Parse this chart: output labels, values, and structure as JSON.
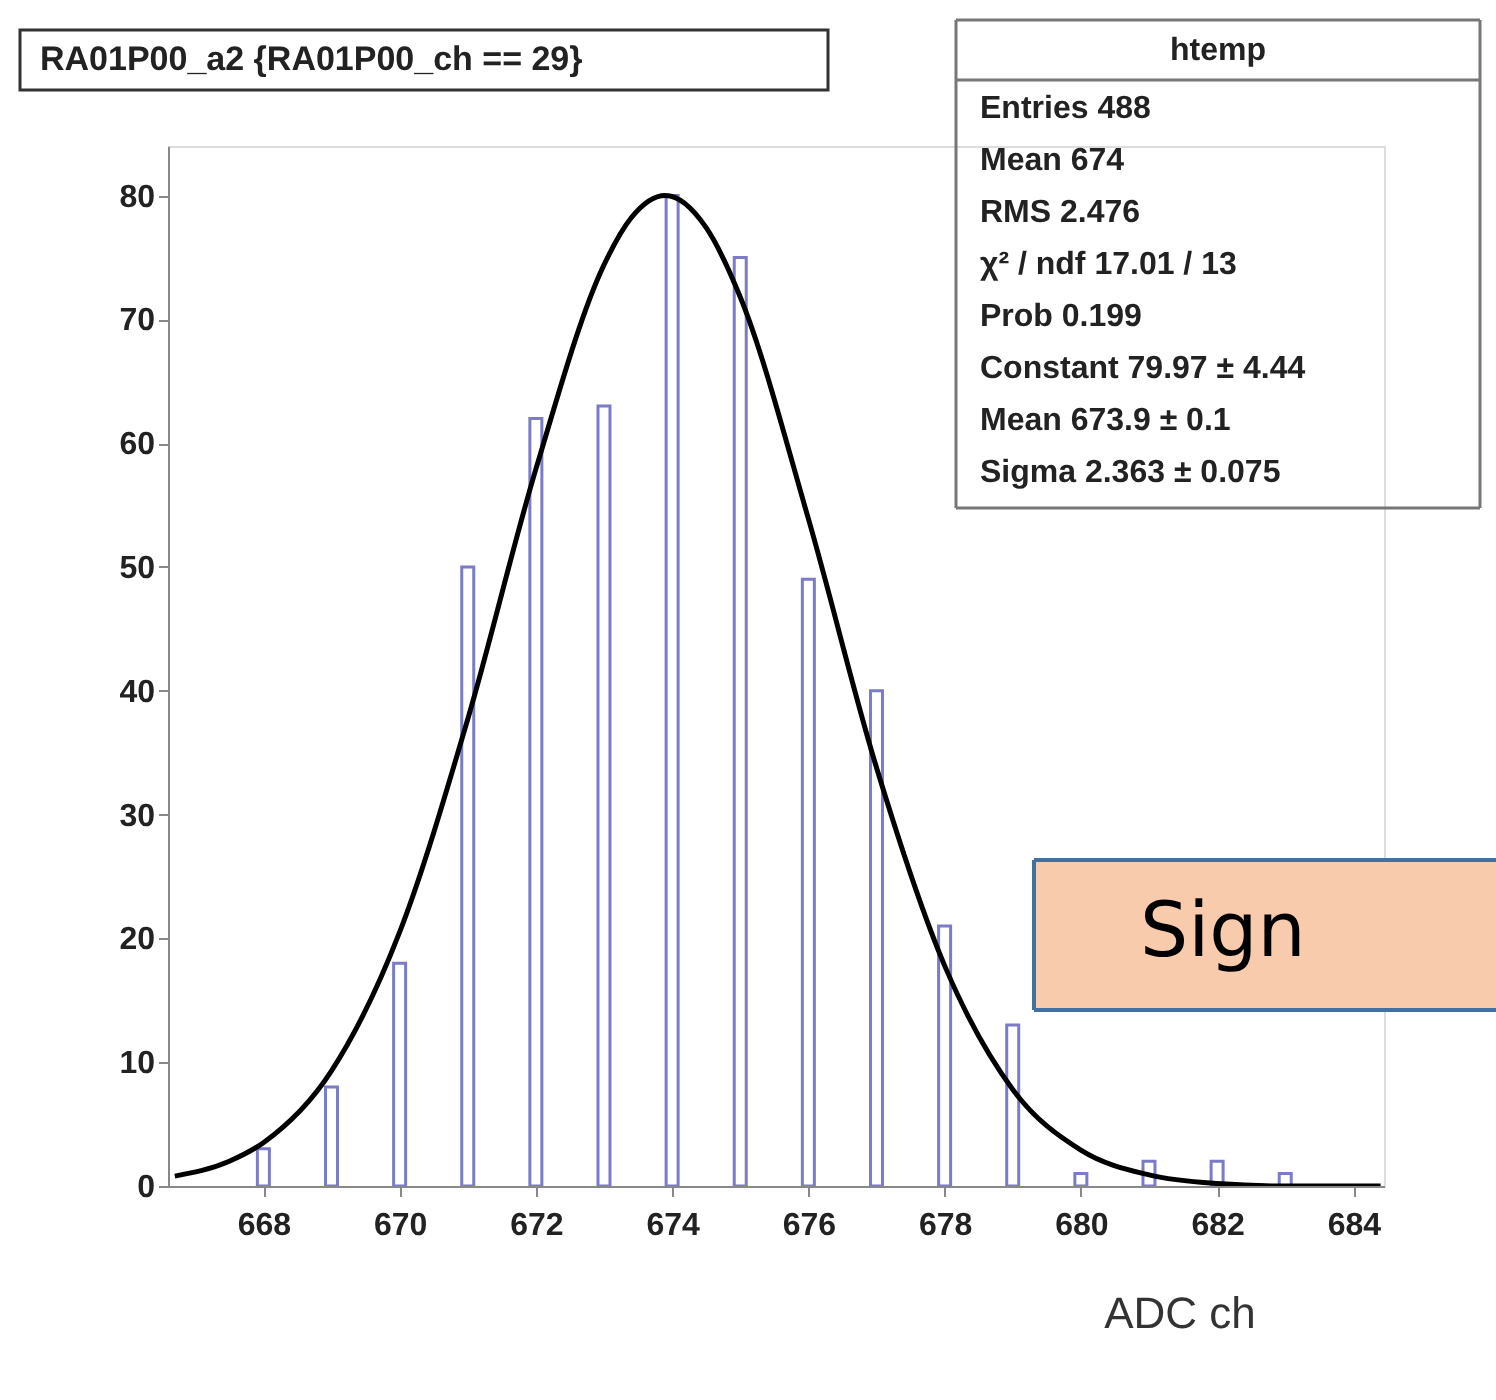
{
  "chart_data": {
    "type": "bar",
    "title": "RA01P00_a2 {RA01P00_ch == 29}",
    "xlabel": "ADC ch",
    "x": [
      668,
      669,
      670,
      671,
      672,
      673,
      674,
      675,
      676,
      677,
      678,
      679,
      680,
      681,
      682,
      683
    ],
    "series": [
      {
        "color": "#7b7bc8",
        "values": [
          3,
          8,
          18,
          50,
          62,
          63,
          80,
          75,
          49,
          40,
          21,
          13,
          1,
          2,
          2,
          1
        ]
      },
      {
        "type": "line",
        "color": "#000000",
        "x": [
          666.7,
          667.5,
          668,
          669,
          670,
          671,
          672,
          673,
          673.4,
          673.9,
          674.5,
          675,
          676,
          677,
          678,
          679,
          680,
          681,
          682,
          683,
          684,
          684.4
        ],
        "values": [
          0.8,
          2.0,
          3.5,
          9.3,
          20.5,
          37.7,
          57.9,
          74.4,
          78.2,
          80.0,
          77.4,
          71.8,
          53.9,
          33.8,
          17.8,
          7.8,
          2.9,
          0.9,
          0.2,
          0,
          0,
          0
        ]
      }
    ],
    "xlim": [
      666.6,
      684.45
    ],
    "xticks": [
      668,
      670,
      672,
      674,
      676,
      678,
      680,
      682,
      684
    ],
    "ylim": [
      0,
      84
    ],
    "yticks": [
      0,
      10,
      20,
      30,
      40,
      50,
      60,
      70,
      80
    ],
    "grid": false,
    "annotations": [
      "htemp",
      "Entries 488",
      "Mean 674",
      "RMS 2.476",
      "χ² / ndf 17.01 / 13",
      "Prob 0.199",
      "Constant 79.97 ± 4.44",
      "Mean 673.9 ± 0.1",
      "Sigma 2.363 ± 0.075",
      "Sign"
    ]
  }
}
